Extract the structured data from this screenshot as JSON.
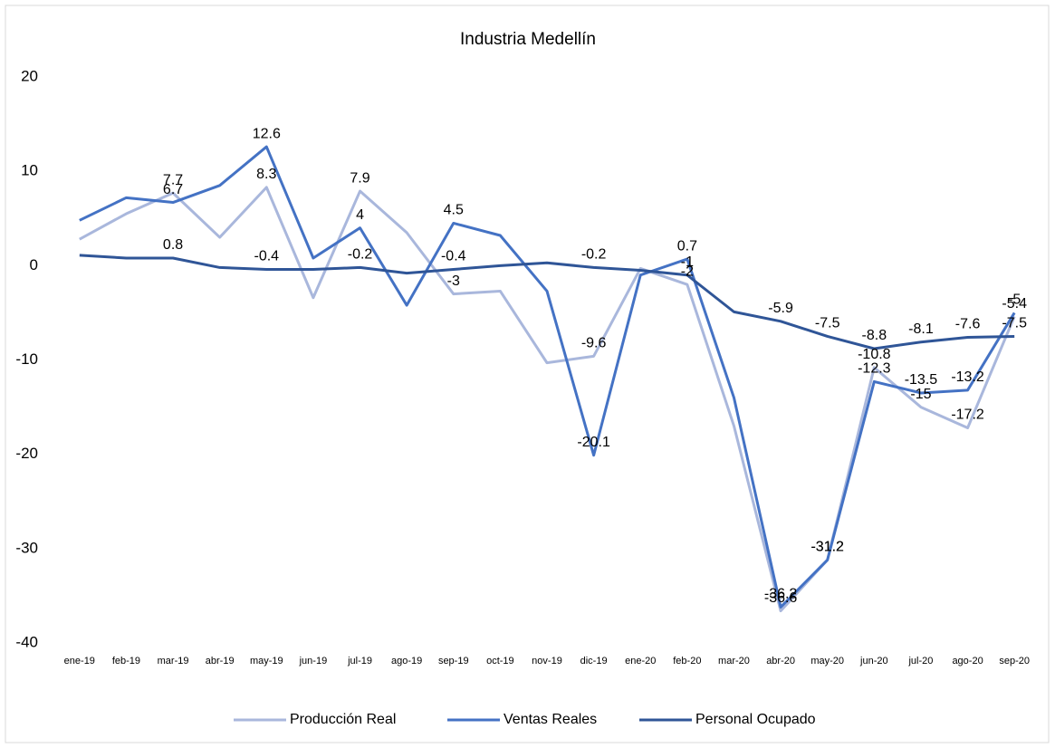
{
  "chart_data": {
    "type": "line",
    "title": "Industria Medellín",
    "categories": [
      "ene-19",
      "feb-19",
      "mar-19",
      "abr-19",
      "may-19",
      "jun-19",
      "jul-19",
      "ago-19",
      "sep-19",
      "oct-19",
      "nov-19",
      "dic-19",
      "ene-20",
      "feb-20",
      "mar-20",
      "abr-20",
      "may-20",
      "jun-20",
      "jul-20",
      "ago-20",
      "sep-20"
    ],
    "series": [
      {
        "name": "Producción Real",
        "color": "#a9b7dc",
        "values": [
          2.8,
          5.5,
          7.7,
          3,
          8.3,
          -3.4,
          7.9,
          3.5,
          -3,
          -2.7,
          -10.3,
          -9.6,
          -0.3,
          -2,
          -17,
          -36.6,
          -31.2,
          -10.8,
          -15,
          -17.2,
          -5.4
        ],
        "value_labels": [
          null,
          null,
          "7.7",
          null,
          "8.3",
          null,
          "7.9",
          null,
          "-3",
          null,
          null,
          "-9.6",
          null,
          "-2",
          null,
          "-36.6",
          "-31.2",
          "-10.8",
          "-15",
          "-17.2",
          "-5.4"
        ]
      },
      {
        "name": "Ventas Reales",
        "color": "#4472c4",
        "values": [
          4.8,
          7.2,
          6.7,
          8.5,
          12.6,
          0.8,
          4,
          -4.2,
          4.5,
          3.2,
          -2.7,
          -20.1,
          -1,
          0.7,
          -14,
          -36.2,
          -31.2,
          -12.3,
          -13.5,
          -13.2,
          -5
        ],
        "value_labels": [
          null,
          null,
          "6.7",
          null,
          "12.6",
          null,
          "4",
          null,
          "4.5",
          null,
          null,
          "-20.1",
          null,
          "0.7",
          null,
          "-36.2",
          "-31.2",
          "-12.3",
          "-13.5",
          "-13.2",
          "-5"
        ]
      },
      {
        "name": "Personal Ocupado",
        "color": "#2f5597",
        "values": [
          1.1,
          0.8,
          0.8,
          -0.2,
          -0.4,
          -0.4,
          -0.2,
          -0.8,
          -0.4,
          0,
          0.3,
          -0.2,
          -0.5,
          -1,
          -4.9,
          -5.9,
          -7.5,
          -8.8,
          -8.1,
          -7.6,
          -7.5
        ],
        "value_labels": [
          null,
          null,
          "0.8",
          null,
          "-0.4",
          null,
          "-0.2",
          null,
          "-0.4",
          null,
          null,
          "-0.2",
          null,
          "-1",
          null,
          "-5.9",
          "-7.5",
          "-8.8",
          "-8.1",
          "-7.6",
          "-7.5"
        ]
      }
    ],
    "ylim": [
      -40,
      20
    ],
    "yticks": [
      -40,
      -30,
      -20,
      -10,
      0,
      10,
      20
    ],
    "legend": "bottom"
  }
}
